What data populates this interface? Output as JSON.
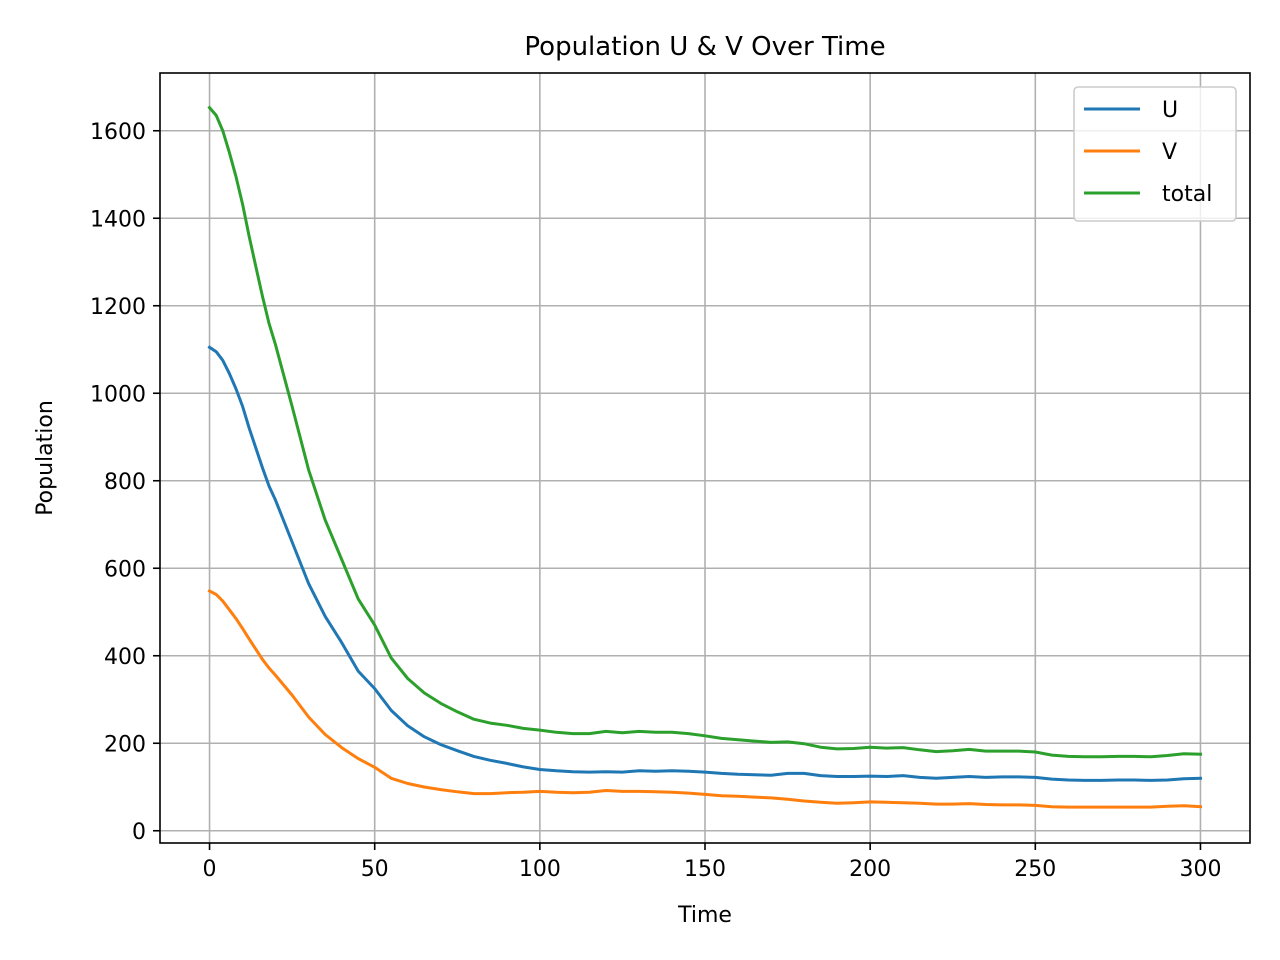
{
  "chart_data": {
    "type": "line",
    "title": "Population U & V Over Time",
    "xlabel": "Time",
    "ylabel": "Population",
    "xlim": [
      -15,
      315
    ],
    "ylim": [
      -28,
      1732
    ],
    "xticks": [
      0,
      50,
      100,
      150,
      200,
      250,
      300
    ],
    "yticks": [
      0,
      200,
      400,
      600,
      800,
      1000,
      1200,
      1400,
      1600
    ],
    "grid": true,
    "legend_position": "top-right",
    "x": [
      0,
      2,
      4,
      6,
      8,
      10,
      12,
      14,
      16,
      18,
      20,
      25,
      30,
      35,
      40,
      45,
      50,
      55,
      60,
      65,
      70,
      75,
      80,
      85,
      90,
      95,
      100,
      105,
      110,
      115,
      120,
      125,
      130,
      135,
      140,
      145,
      150,
      155,
      160,
      165,
      170,
      175,
      180,
      185,
      190,
      195,
      200,
      205,
      210,
      215,
      220,
      225,
      230,
      235,
      240,
      245,
      250,
      255,
      260,
      265,
      270,
      275,
      280,
      285,
      290,
      295,
      300
    ],
    "series": [
      {
        "name": "U",
        "color": "#1f77b4",
        "values": [
          1105,
          1095,
          1075,
          1045,
          1010,
          970,
          920,
          875,
          830,
          788,
          755,
          660,
          565,
          490,
          430,
          365,
          325,
          275,
          240,
          215,
          197,
          183,
          170,
          161,
          154,
          146,
          140,
          137,
          135,
          134,
          135,
          134,
          137,
          136,
          137,
          136,
          134,
          131,
          129,
          128,
          127,
          131,
          131,
          126,
          124,
          124,
          125,
          124,
          126,
          122,
          120,
          122,
          124,
          122,
          123,
          123,
          122,
          118,
          116,
          115,
          115,
          116,
          116,
          115,
          116,
          119,
          120
        ]
      },
      {
        "name": "V",
        "color": "#ff7f0e",
        "values": [
          548,
          540,
          525,
          505,
          485,
          462,
          438,
          415,
          392,
          372,
          355,
          310,
          260,
          220,
          190,
          165,
          145,
          120,
          108,
          100,
          94,
          89,
          85,
          85,
          87,
          88,
          90,
          88,
          87,
          88,
          92,
          90,
          90,
          89,
          88,
          86,
          83,
          80,
          79,
          77,
          75,
          72,
          68,
          65,
          63,
          64,
          66,
          65,
          64,
          63,
          61,
          61,
          62,
          60,
          59,
          59,
          58,
          55,
          54,
          54,
          54,
          54,
          54,
          54,
          56,
          57,
          55
        ]
      },
      {
        "name": "total",
        "color": "#2ca02c",
        "values": [
          1653,
          1635,
          1600,
          1550,
          1495,
          1432,
          1358,
          1290,
          1222,
          1160,
          1110,
          970,
          825,
          710,
          620,
          530,
          470,
          395,
          348,
          315,
          291,
          272,
          255,
          246,
          241,
          234,
          230,
          225,
          222,
          222,
          227,
          224,
          227,
          225,
          225,
          222,
          217,
          211,
          208,
          205,
          202,
          203,
          199,
          191,
          187,
          188,
          191,
          189,
          190,
          185,
          181,
          183,
          186,
          182,
          182,
          182,
          180,
          173,
          170,
          169,
          169,
          170,
          170,
          169,
          172,
          176,
          175
        ]
      }
    ]
  }
}
